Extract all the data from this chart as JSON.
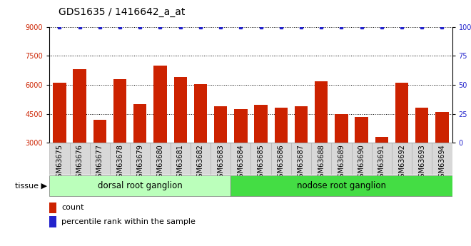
{
  "title": "GDS1635 / 1416642_a_at",
  "samples": [
    "GSM63675",
    "GSM63676",
    "GSM63677",
    "GSM63678",
    "GSM63679",
    "GSM63680",
    "GSM63681",
    "GSM63682",
    "GSM63683",
    "GSM63684",
    "GSM63685",
    "GSM63686",
    "GSM63687",
    "GSM63688",
    "GSM63689",
    "GSM63690",
    "GSM63691",
    "GSM63692",
    "GSM63693",
    "GSM63694"
  ],
  "counts": [
    6100,
    6800,
    4200,
    6300,
    5000,
    7000,
    6400,
    6050,
    4900,
    4750,
    4950,
    4800,
    4900,
    6200,
    4500,
    4350,
    3300,
    6100,
    4800,
    4600
  ],
  "percentile": [
    100,
    100,
    100,
    100,
    100,
    100,
    100,
    100,
    100,
    100,
    100,
    100,
    100,
    100,
    100,
    100,
    100,
    100,
    100,
    100
  ],
  "bar_color": "#cc2200",
  "dot_color": "#2222cc",
  "group1_label": "dorsal root ganglion",
  "group1_count": 9,
  "group2_label": "nodose root ganglion",
  "group2_count": 11,
  "group1_color": "#bbffbb",
  "group2_color": "#44dd44",
  "tissue_label": "tissue",
  "ylim_left": [
    3000,
    9000
  ],
  "ylim_right": [
    0,
    100
  ],
  "yticks_left": [
    3000,
    4500,
    6000,
    7500,
    9000
  ],
  "yticks_right": [
    0,
    25,
    50,
    75,
    100
  ],
  "grid_color": "#000000",
  "bg_color": "#ffffff",
  "legend_count_label": "count",
  "legend_pct_label": "percentile rank within the sample",
  "title_fontsize": 10,
  "tick_fontsize": 7,
  "label_fontsize": 8,
  "group_fontsize": 8.5
}
